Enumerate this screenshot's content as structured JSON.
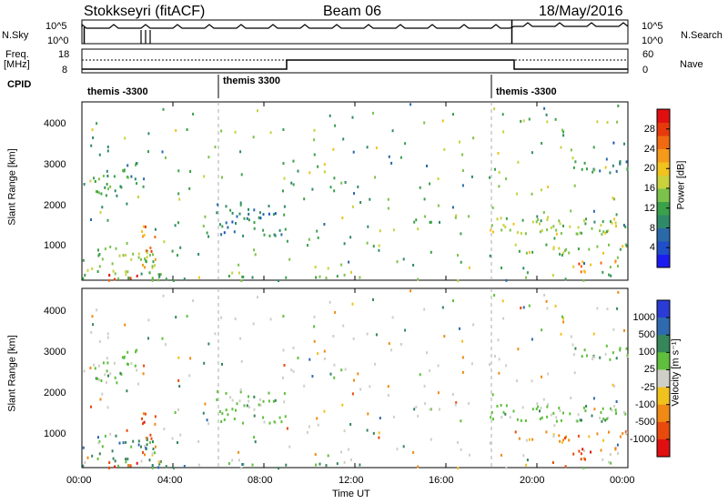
{
  "header": {
    "station": "Stokkseyri (fitACF)",
    "beam": "Beam 06",
    "date": "18/May/2016"
  },
  "nsky_panel": {
    "left_label": "N.Sky",
    "right_label": "N.Search",
    "left_ticks": [
      "10^5",
      "10^0"
    ],
    "right_ticks": [
      "10^5",
      "10^0"
    ]
  },
  "freq_panel": {
    "left_label_1": "Freq.",
    "left_label_2": "[MHz]",
    "right_label": "Nave",
    "left_ticks": [
      "18",
      "8"
    ],
    "right_ticks": [
      "60",
      "0"
    ]
  },
  "cpid_panel": {
    "label": "CPID",
    "segments": [
      {
        "start_hour": 0.0,
        "name": "themis -3300"
      },
      {
        "start_hour": 6.0,
        "name": "themis 3300"
      },
      {
        "start_hour": 18.0,
        "name": "themis -3300"
      }
    ]
  },
  "x_axis": {
    "label": "Time UT",
    "range_hours": [
      0,
      24
    ],
    "ticks": [
      "00:00",
      "04:00",
      "08:00",
      "12:00",
      "16:00",
      "20:00",
      "00:00"
    ]
  },
  "power_panel": {
    "ylabel": "Slant Range [km]",
    "yticks": [
      "1000",
      "2000",
      "3000",
      "4000"
    ],
    "colorbar_label": "Power [dB]",
    "colorbar_ticks": [
      "4",
      "8",
      "12",
      "16",
      "20",
      "24",
      "28"
    ]
  },
  "velocity_panel": {
    "ylabel": "Slant Range [km]",
    "yticks": [
      "1000",
      "2000",
      "3000",
      "4000"
    ],
    "colorbar_label": "Velocity [m s⁻¹]",
    "colorbar_ticks": [
      "1000",
      "500",
      "100",
      "25",
      "-25",
      "-100",
      "-500",
      "-1000"
    ]
  },
  "chart_data": {
    "type": "heatmap",
    "x_unit": "hours UT",
    "y_unit": "km",
    "y_range": [
      180,
      4600
    ],
    "power_scale": [
      0,
      32
    ],
    "power_colors": [
      "#1c1cf0",
      "#1f4fc8",
      "#2a6aa8",
      "#2f8a6a",
      "#3aa04a",
      "#7cc24a",
      "#c9d23c",
      "#f2c21e",
      "#f59a1a",
      "#f06a12",
      "#e63a0c",
      "#e01010"
    ],
    "velocity_colors": [
      "#2a3cd4",
      "#2e6ab0",
      "#36865a",
      "#5fbf3c",
      "#cfcfc8",
      "#f0c21e",
      "#f08a14",
      "#e84a0c",
      "#e01010"
    ],
    "scatter_regions": [
      {
        "t": [
          0.3,
          1.5
        ],
        "r": [
          2150,
          2850
        ],
        "power": 12,
        "vel": 25
      },
      {
        "t": [
          0.0,
          3.2
        ],
        "r": [
          250,
          1000
        ],
        "power": 14,
        "vel": 100
      },
      {
        "t": [
          1.0,
          2.6
        ],
        "r": [
          200,
          350
        ],
        "power": 28,
        "vel": -500
      },
      {
        "t": [
          2.6,
          3.2
        ],
        "r": [
          500,
          1600
        ],
        "power": 24,
        "vel": -500
      },
      {
        "t": [
          1.5,
          2.5
        ],
        "r": [
          2500,
          3200
        ],
        "power": 10,
        "vel": 25
      },
      {
        "t": [
          5.8,
          9.0
        ],
        "r": [
          1300,
          2100
        ],
        "power": 8,
        "vel": 25
      },
      {
        "t": [
          3.0,
          13.0
        ],
        "r": [
          200,
          320
        ],
        "power": 10,
        "vel": 100
      },
      {
        "t": [
          14.5,
          15.8
        ],
        "r": [
          1600,
          1800
        ],
        "power": 12,
        "vel": 25
      },
      {
        "t": [
          17.8,
          24.0
        ],
        "r": [
          1350,
          1800
        ],
        "power": 16,
        "vel": 25
      },
      {
        "t": [
          19.0,
          24.0
        ],
        "r": [
          800,
          1100
        ],
        "power": 16,
        "vel": -100
      },
      {
        "t": [
          21.5,
          23.5
        ],
        "r": [
          350,
          700
        ],
        "power": 24,
        "vel": -500
      },
      {
        "t": [
          21.5,
          24.0
        ],
        "r": [
          2800,
          3300
        ],
        "power": 8,
        "vel": 25
      }
    ]
  }
}
